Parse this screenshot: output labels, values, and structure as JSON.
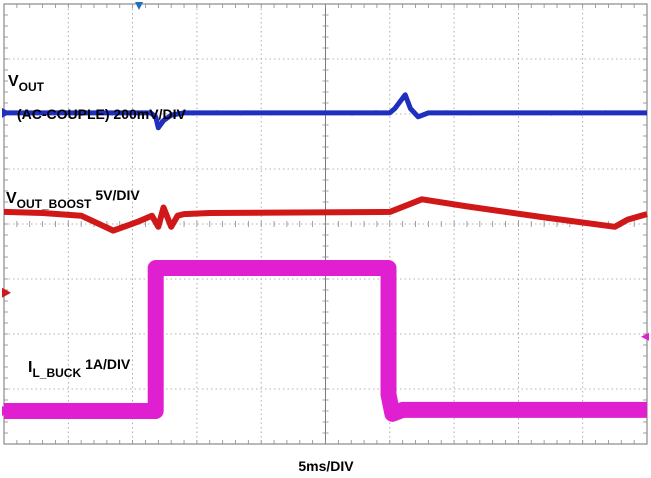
{
  "chart_data": {
    "type": "line",
    "title": "",
    "xlabel": "5ms/DIV",
    "ylabel": "",
    "grid": true,
    "divisions": {
      "x": 10,
      "y": 8
    },
    "x_unit": "ms",
    "x_per_div": 5,
    "xlim": [
      0,
      50
    ],
    "ylim_div": [
      0,
      8
    ],
    "series": [
      {
        "name": "VOUT (AC-COUPLE) 200mV/DIV",
        "label_main": "V",
        "label_sub": "OUT",
        "label_scale": "(AC-COUPLE) 200mV/DIV",
        "color": "#1f2fbf",
        "x": [
          0,
          11.4,
          11.8,
          12.0,
          12.4,
          13.0,
          14.0,
          30.0,
          30.4,
          31.2,
          31.6,
          32.2,
          33.0,
          50
        ],
        "y": [
          6.02,
          6.02,
          5.95,
          5.75,
          5.88,
          5.98,
          6.02,
          6.02,
          6.1,
          6.35,
          6.1,
          5.95,
          6.02,
          6.02
        ]
      },
      {
        "name": "VOUT_BOOST 5V/DIV",
        "label_main": "V",
        "label_sub": "OUT_BOOST",
        "label_scale": "5V/DIV",
        "color": "#d01818",
        "x": [
          0,
          3.0,
          6.0,
          8.5,
          10.5,
          11.5,
          12.0,
          12.4,
          13.0,
          13.5,
          14.0,
          16.0,
          30.0,
          32.5,
          36.0,
          42.0,
          47.5,
          48.5,
          50.0
        ],
        "y": [
          4.22,
          4.2,
          4.15,
          3.88,
          4.05,
          4.15,
          3.95,
          4.3,
          3.95,
          4.15,
          4.18,
          4.2,
          4.22,
          4.45,
          4.32,
          4.12,
          3.95,
          4.08,
          4.18
        ]
      },
      {
        "name": "IL_BUCK 1A/DIV",
        "label_main": "I",
        "label_sub": "L_BUCK",
        "label_scale": "1A/DIV",
        "color": "#e020d0",
        "x": [
          0,
          11.8,
          11.8,
          29.9,
          29.9,
          30.2,
          31.0,
          50
        ],
        "y": [
          0.6,
          0.6,
          3.2,
          3.2,
          0.9,
          0.55,
          0.62,
          0.62
        ]
      }
    ],
    "channel_markers": [
      {
        "channel": 1,
        "color": "#1f2fbf",
        "y": 6.02
      },
      {
        "channel": 2,
        "color": "#d01818",
        "y": 2.75
      },
      {
        "channel": 3,
        "color": "#e020d0",
        "y": 0.6
      }
    ],
    "trigger_marker": {
      "color": "#1f6fbf"
    }
  },
  "labels": {
    "vout_main": "V",
    "vout_sub": "OUT",
    "vout_scale": "(AC-COUPLE) 200mV/DIV",
    "boost_main": "V",
    "boost_sub": "OUT_BOOST",
    "boost_scale": "5V/DIV",
    "ibuck_main": "I",
    "ibuck_sub": "L_BUCK",
    "ibuck_scale": "1A/DIV",
    "timebase": "5ms/DIV"
  }
}
